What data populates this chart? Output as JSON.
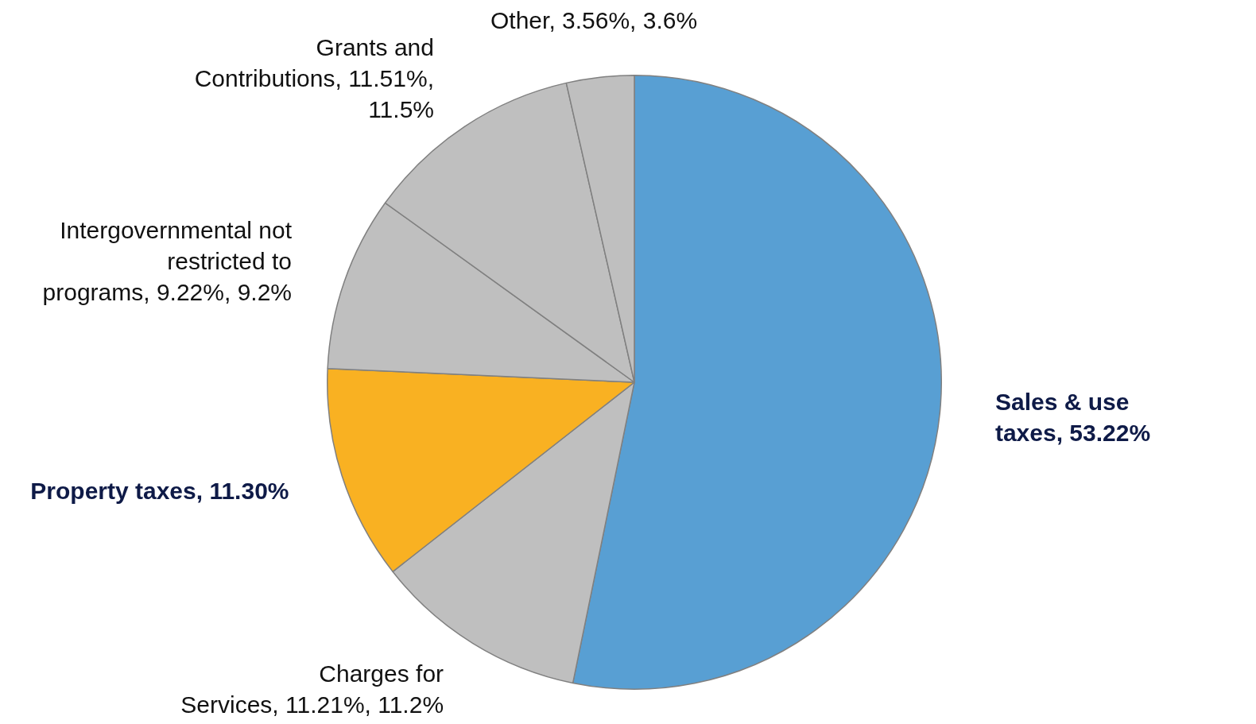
{
  "chart_data": {
    "type": "pie",
    "categories": [
      "Sales & use taxes",
      "Charges for Services",
      "Property taxes",
      "Intergovernmental not restricted to programs",
      "Grants and Contributions",
      "Other"
    ],
    "values": [
      53.22,
      11.21,
      11.3,
      9.22,
      11.51,
      3.56
    ],
    "value_labels": [
      "53.22%",
      "11.21%, 11.2%",
      "11.30%",
      "9.22%, 9.2%",
      "11.51%, 11.5%",
      "3.56%, 3.6%"
    ],
    "colors": [
      "#589fd3",
      "#bfbfbf",
      "#f9b122",
      "#bfbfbf",
      "#bfbfbf",
      "#bfbfbf"
    ],
    "legend": false
  }
}
